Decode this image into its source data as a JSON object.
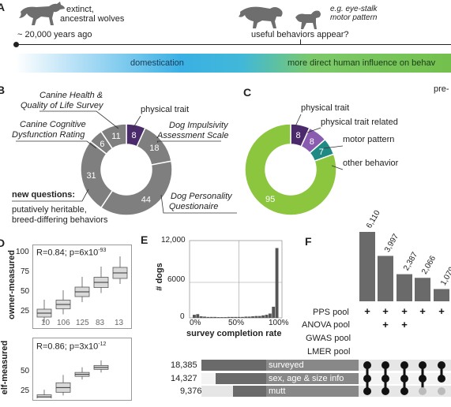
{
  "panel_labels": {
    "a": "A",
    "b": "B",
    "c": "C",
    "d": "D",
    "e": "E",
    "f": "F"
  },
  "timeline": {
    "wolves_label_1": "extinct,",
    "wolves_label_2": "ancestral wolves",
    "years_ago": "~ 20,000 years ago",
    "useful_behaviors": "useful behaviors appear?",
    "example_1": "e.g. eye-stalk",
    "example_2": "motor pattern",
    "domestication": "domestication",
    "human_influence": "more direct human influence on behav",
    "pre": "pre-"
  },
  "panel_b": {
    "chart_data": {
      "type": "pie",
      "categories": [
        "physical trait",
        "Dog Impulsivity Assessment Scale",
        "Dog Personality Questionaire",
        "new questions",
        "Canine Cognitive Dysfunction Rating",
        "Canine Health & Quality of Life Survey"
      ],
      "values": [
        8,
        18,
        44,
        31,
        6,
        11
      ]
    },
    "labels": {
      "health_1": "Canine Health &",
      "health_2": "Quality of Life Survey",
      "physical": "physical trait",
      "impulsivity_1": "Dog Impulsivity",
      "impulsivity_2": "Assessment Scale",
      "cognitive_1": "Canine Cognitive",
      "cognitive_2": "Dysfunction Rating",
      "new_q": "new questions:",
      "new_q_2": "putatively heritable,",
      "new_q_3": "breed-differing behaviors",
      "personality_1": "Dog Personality",
      "personality_2": "Questionaire"
    },
    "colors": {
      "highlight": "#4b2a6b",
      "gray": "#7f7f7f"
    }
  },
  "panel_c": {
    "chart_data": {
      "type": "pie",
      "categories": [
        "physical trait",
        "physical trait related",
        "motor pattern",
        "other behavior"
      ],
      "values": [
        8,
        8,
        7,
        95
      ]
    },
    "labels": {
      "physical": "physical trait",
      "related": "physical trait related",
      "motor": "motor pattern",
      "other": "other behavior"
    },
    "colors": {
      "physical": "#4b2a6b",
      "related": "#8a5cb0",
      "motor": "#1f8a84",
      "other": "#8cc63f"
    }
  },
  "panel_d": {
    "ylabel_top": "owner-measured",
    "ylabel_bottom": "elf-measured",
    "stat_top": "R=0.84; p=6x10",
    "stat_top_exp": "-93",
    "stat_bottom": "R=0.86; p=3x10",
    "stat_bottom_exp": "-12",
    "yticks_top": [
      "100",
      "75",
      "50",
      "25"
    ],
    "yticks_bottom": [
      "50",
      "25"
    ],
    "counts": [
      "10",
      "106",
      "125",
      "83",
      "13"
    ],
    "chart_data": {
      "type": "box",
      "owner_medians": [
        22,
        33,
        49,
        61,
        73
      ],
      "self_medians": [
        19,
        31,
        48,
        57
      ]
    }
  },
  "panel_e": {
    "ylabel": "# dogs",
    "xlabel": "survey completion rate",
    "yticks": [
      "12,000",
      "6000",
      "0"
    ],
    "xticks": [
      "0%",
      "50%",
      "100%"
    ],
    "chart_data": {
      "type": "bar",
      "x": [
        2,
        6,
        10,
        14,
        18,
        22,
        26,
        30,
        34,
        38,
        42,
        46,
        50,
        54,
        58,
        62,
        66,
        70,
        74,
        78,
        82,
        86,
        90,
        94,
        98
      ],
      "values": [
        500,
        600,
        250,
        200,
        150,
        150,
        150,
        120,
        120,
        120,
        150,
        150,
        150,
        150,
        150,
        200,
        200,
        250,
        300,
        300,
        400,
        500,
        700,
        1800,
        11300
      ],
      "ylim": [
        0,
        12000
      ]
    }
  },
  "panel_f": {
    "intersection_values": [
      "6,110",
      "3,997",
      "2,387",
      "2,066",
      "1,079"
    ],
    "chart_data": {
      "type": "bar",
      "values": [
        6110,
        3997,
        2387,
        2066,
        1079
      ]
    },
    "pools": [
      "PPS pool",
      "ANOVA pool",
      "GWAS pool",
      "LMER pool"
    ],
    "set_sizes": [
      {
        "value": "18,385",
        "label": "surveyed"
      },
      {
        "value": "14,327",
        "label": "sex, age & size info"
      },
      {
        "value": "9,376",
        "label": "mutt"
      }
    ],
    "plus": "+",
    "colors": {
      "bar": "#6a6a6a",
      "dot": "#111111"
    }
  }
}
